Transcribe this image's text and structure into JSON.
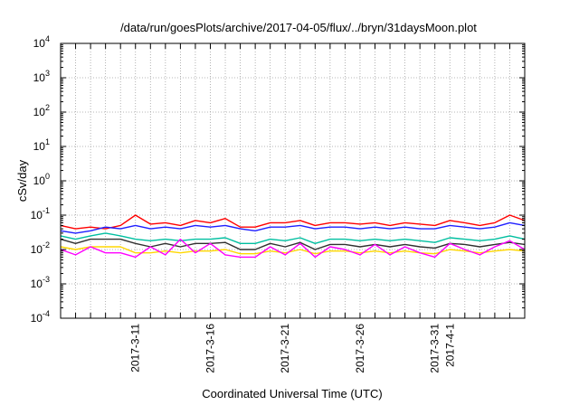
{
  "chart_data": {
    "type": "line",
    "title": "/data/run/goesPlots/archive/2017-04-05/flux/../bryn/31daysMoon.plot",
    "xlabel": "Coordinated Universal Time (UTC)",
    "ylabel": "cSv/day",
    "y_scale": "log",
    "ylim": [
      0.0001,
      10000
    ],
    "xlim": [
      "2017-03-06",
      "2017-04-06"
    ],
    "grid": true,
    "legend": "none",
    "y_ticks": [
      {
        "value": 0.0001,
        "base": "10",
        "exp": "-4"
      },
      {
        "value": 0.001,
        "base": "10",
        "exp": "-3"
      },
      {
        "value": 0.01,
        "base": "10",
        "exp": "-2"
      },
      {
        "value": 0.1,
        "base": "10",
        "exp": "-1"
      },
      {
        "value": 1,
        "base": "10",
        "exp": "0"
      },
      {
        "value": 10,
        "base": "10",
        "exp": "1"
      },
      {
        "value": 100,
        "base": "10",
        "exp": "2"
      },
      {
        "value": 1000,
        "base": "10",
        "exp": "3"
      },
      {
        "value": 10000,
        "base": "10",
        "exp": "4"
      }
    ],
    "x_ticks": [
      {
        "date": "2017-03-11",
        "label": [
          "2017-3-11"
        ]
      },
      {
        "date": "2017-03-16",
        "label": [
          "2017-3-16"
        ]
      },
      {
        "date": "2017-03-21",
        "label": [
          "2017-3-21"
        ]
      },
      {
        "date": "2017-03-26",
        "label": [
          "2017-3-26"
        ]
      },
      {
        "date": "2017-03-31",
        "label": [
          "2017-3-31"
        ]
      },
      {
        "date": "2017-04-01",
        "label": [
          "2017-4-1"
        ]
      }
    ],
    "series": [
      {
        "color": "#ff0000",
        "x": [
          "2017-03-06",
          "2017-03-07",
          "2017-03-08",
          "2017-03-09",
          "2017-03-10",
          "2017-03-11",
          "2017-03-12",
          "2017-03-13",
          "2017-03-14",
          "2017-03-15",
          "2017-03-16",
          "2017-03-17",
          "2017-03-18",
          "2017-03-19",
          "2017-03-20",
          "2017-03-21",
          "2017-03-22",
          "2017-03-23",
          "2017-03-24",
          "2017-03-25",
          "2017-03-26",
          "2017-03-27",
          "2017-03-28",
          "2017-03-29",
          "2017-03-30",
          "2017-03-31",
          "2017-04-01",
          "2017-04-02",
          "2017-04-03",
          "2017-04-04",
          "2017-04-05",
          "2017-04-06"
        ],
        "values": [
          0.05,
          0.04,
          0.045,
          0.04,
          0.05,
          0.1,
          0.055,
          0.06,
          0.05,
          0.07,
          0.06,
          0.08,
          0.045,
          0.045,
          0.06,
          0.06,
          0.07,
          0.05,
          0.06,
          0.06,
          0.055,
          0.06,
          0.05,
          0.06,
          0.055,
          0.05,
          0.07,
          0.06,
          0.05,
          0.06,
          0.1,
          0.07
        ]
      },
      {
        "color": "#1f1fff",
        "x": [
          "2017-03-06",
          "2017-03-07",
          "2017-03-08",
          "2017-03-09",
          "2017-03-10",
          "2017-03-11",
          "2017-03-12",
          "2017-03-13",
          "2017-03-14",
          "2017-03-15",
          "2017-03-16",
          "2017-03-17",
          "2017-03-18",
          "2017-03-19",
          "2017-03-20",
          "2017-03-21",
          "2017-03-22",
          "2017-03-23",
          "2017-03-24",
          "2017-03-25",
          "2017-03-26",
          "2017-03-27",
          "2017-03-28",
          "2017-03-29",
          "2017-03-30",
          "2017-03-31",
          "2017-04-01",
          "2017-04-02",
          "2017-04-03",
          "2017-04-04",
          "2017-04-05",
          "2017-04-06"
        ],
        "values": [
          0.035,
          0.03,
          0.035,
          0.045,
          0.04,
          0.05,
          0.04,
          0.045,
          0.04,
          0.05,
          0.045,
          0.05,
          0.04,
          0.035,
          0.045,
          0.045,
          0.05,
          0.04,
          0.045,
          0.045,
          0.04,
          0.045,
          0.04,
          0.045,
          0.04,
          0.04,
          0.05,
          0.045,
          0.04,
          0.045,
          0.06,
          0.05
        ]
      },
      {
        "color": "#00bfa0",
        "x": [
          "2017-03-06",
          "2017-03-07",
          "2017-03-08",
          "2017-03-09",
          "2017-03-10",
          "2017-03-11",
          "2017-03-12",
          "2017-03-13",
          "2017-03-14",
          "2017-03-15",
          "2017-03-16",
          "2017-03-17",
          "2017-03-18",
          "2017-03-19",
          "2017-03-20",
          "2017-03-21",
          "2017-03-22",
          "2017-03-23",
          "2017-03-24",
          "2017-03-25",
          "2017-03-26",
          "2017-03-27",
          "2017-03-28",
          "2017-03-29",
          "2017-03-30",
          "2017-03-31",
          "2017-04-01",
          "2017-04-02",
          "2017-04-03",
          "2017-04-04",
          "2017-04-05",
          "2017-04-06"
        ],
        "values": [
          0.025,
          0.02,
          0.025,
          0.03,
          0.025,
          0.02,
          0.018,
          0.02,
          0.018,
          0.02,
          0.02,
          0.022,
          0.015,
          0.015,
          0.02,
          0.018,
          0.022,
          0.015,
          0.02,
          0.02,
          0.018,
          0.02,
          0.018,
          0.02,
          0.018,
          0.016,
          0.022,
          0.02,
          0.018,
          0.02,
          0.025,
          0.02
        ]
      },
      {
        "color": "#303030",
        "x": [
          "2017-03-06",
          "2017-03-07",
          "2017-03-08",
          "2017-03-09",
          "2017-03-10",
          "2017-03-11",
          "2017-03-12",
          "2017-03-13",
          "2017-03-14",
          "2017-03-15",
          "2017-03-16",
          "2017-03-17",
          "2017-03-18",
          "2017-03-19",
          "2017-03-20",
          "2017-03-21",
          "2017-03-22",
          "2017-03-23",
          "2017-03-24",
          "2017-03-25",
          "2017-03-26",
          "2017-03-27",
          "2017-03-28",
          "2017-03-29",
          "2017-03-30",
          "2017-03-31",
          "2017-04-01",
          "2017-04-02",
          "2017-04-03",
          "2017-04-04",
          "2017-04-05",
          "2017-04-06"
        ],
        "values": [
          0.02,
          0.015,
          0.02,
          0.02,
          0.02,
          0.015,
          0.012,
          0.015,
          0.012,
          0.015,
          0.015,
          0.016,
          0.01,
          0.01,
          0.015,
          0.012,
          0.016,
          0.01,
          0.014,
          0.014,
          0.012,
          0.014,
          0.012,
          0.014,
          0.012,
          0.011,
          0.015,
          0.014,
          0.012,
          0.014,
          0.016,
          0.014
        ]
      },
      {
        "color": "#ffd700",
        "x": [
          "2017-03-06",
          "2017-03-07",
          "2017-03-08",
          "2017-03-09",
          "2017-03-10",
          "2017-03-11",
          "2017-03-12",
          "2017-03-13",
          "2017-03-14",
          "2017-03-15",
          "2017-03-16",
          "2017-03-17",
          "2017-03-18",
          "2017-03-19",
          "2017-03-20",
          "2017-03-21",
          "2017-03-22",
          "2017-03-23",
          "2017-03-24",
          "2017-03-25",
          "2017-03-26",
          "2017-03-27",
          "2017-03-28",
          "2017-03-29",
          "2017-03-30",
          "2017-03-31",
          "2017-04-01",
          "2017-04-02",
          "2017-04-03",
          "2017-04-04",
          "2017-04-05",
          "2017-04-06"
        ],
        "values": [
          0.012,
          0.01,
          0.012,
          0.012,
          0.012,
          0.008,
          0.008,
          0.009,
          0.008,
          0.009,
          0.009,
          0.01,
          0.0075,
          0.0075,
          0.009,
          0.008,
          0.01,
          0.0075,
          0.009,
          0.009,
          0.008,
          0.009,
          0.008,
          0.009,
          0.008,
          0.0075,
          0.01,
          0.009,
          0.008,
          0.009,
          0.01,
          0.009
        ]
      },
      {
        "color": "#ff00ff",
        "x": [
          "2017-03-06",
          "2017-03-07",
          "2017-03-08",
          "2017-03-09",
          "2017-03-10",
          "2017-03-11",
          "2017-03-12",
          "2017-03-13",
          "2017-03-14",
          "2017-03-15",
          "2017-03-16",
          "2017-03-17",
          "2017-03-18",
          "2017-03-19",
          "2017-03-20",
          "2017-03-21",
          "2017-03-22",
          "2017-03-23",
          "2017-03-24",
          "2017-03-25",
          "2017-03-26",
          "2017-03-27",
          "2017-03-28",
          "2017-03-29",
          "2017-03-30",
          "2017-03-31",
          "2017-04-01",
          "2017-04-02",
          "2017-04-03",
          "2017-04-04",
          "2017-04-05",
          "2017-04-06"
        ],
        "values": [
          0.01,
          0.007,
          0.012,
          0.008,
          0.008,
          0.006,
          0.012,
          0.007,
          0.02,
          0.008,
          0.015,
          0.007,
          0.006,
          0.006,
          0.012,
          0.007,
          0.015,
          0.006,
          0.012,
          0.01,
          0.007,
          0.014,
          0.007,
          0.012,
          0.008,
          0.006,
          0.015,
          0.01,
          0.007,
          0.012,
          0.018,
          0.01
        ]
      }
    ]
  }
}
